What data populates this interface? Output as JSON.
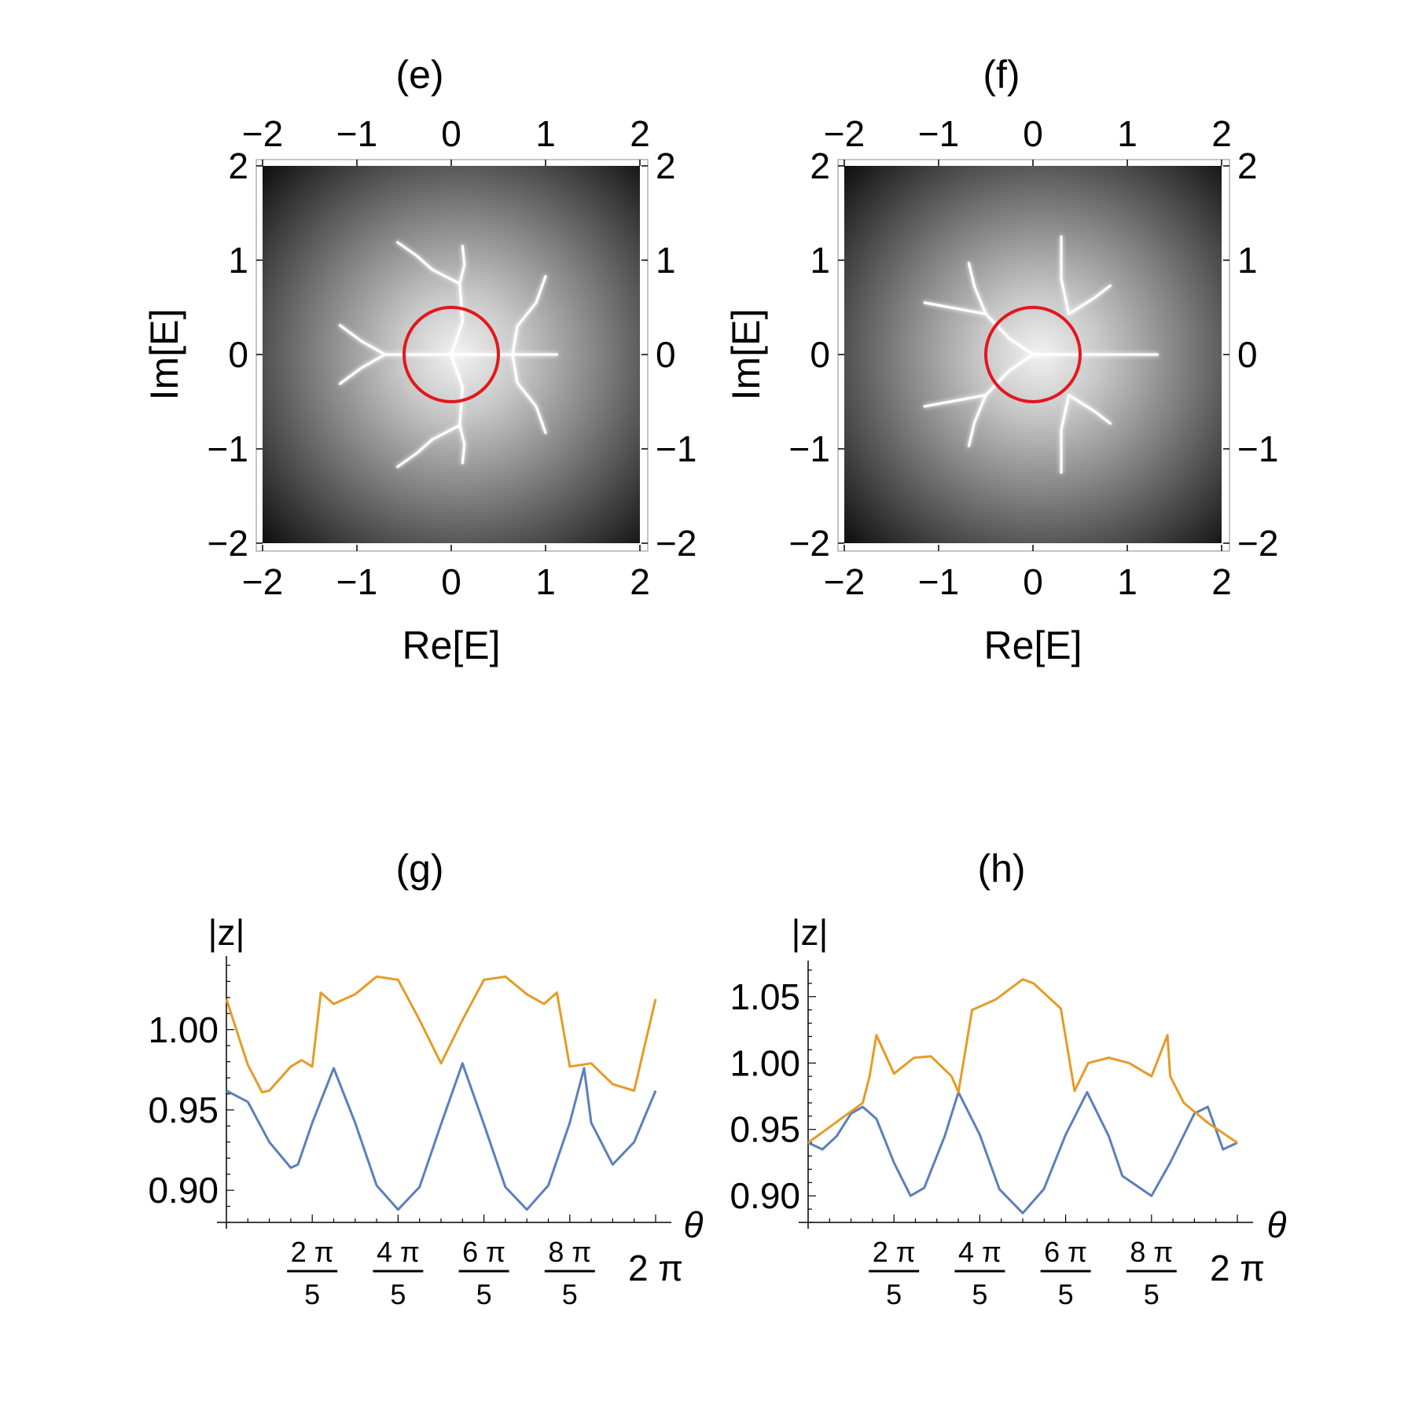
{
  "chart_data": [
    {
      "type": "heatmap",
      "title": "(e)",
      "xlabel": "Re[E]",
      "ylabel": "Im[E]",
      "xlim": [
        -2,
        2
      ],
      "ylim": [
        -2,
        2
      ],
      "xticks": [
        "−2",
        "−1",
        "0",
        "1",
        "2"
      ],
      "yticks": [
        "−2",
        "−1",
        "0",
        "1",
        "2"
      ],
      "colormap": "grayscale, bright near origin, dark at corners",
      "circle": {
        "center": [
          0,
          0
        ],
        "radius": 0.5,
        "color": "#e3171c"
      },
      "spectral_branches": [
        [
          [
            0,
            0
          ],
          [
            1.12,
            0
          ]
        ],
        [
          [
            0,
            0
          ],
          [
            -0.7,
            0
          ]
        ],
        [
          [
            -0.7,
            0
          ],
          [
            -0.95,
            0.14
          ],
          [
            -1.18,
            0.31
          ]
        ],
        [
          [
            -0.7,
            0
          ],
          [
            -0.95,
            -0.14
          ],
          [
            -1.18,
            -0.31
          ]
        ],
        [
          [
            0.65,
            0
          ],
          [
            0.7,
            0.3
          ],
          [
            0.9,
            0.55
          ],
          [
            1.0,
            0.83
          ]
        ],
        [
          [
            0.65,
            0
          ],
          [
            0.7,
            -0.3
          ],
          [
            0.9,
            -0.55
          ],
          [
            1.0,
            -0.83
          ]
        ],
        [
          [
            0.09,
            0.75
          ],
          [
            -0.2,
            0.9
          ],
          [
            -0.37,
            1.05
          ],
          [
            -0.57,
            1.19
          ]
        ],
        [
          [
            0.09,
            0.75
          ],
          [
            0.14,
            0.95
          ],
          [
            0.12,
            1.15
          ]
        ],
        [
          [
            0.09,
            -0.75
          ],
          [
            -0.2,
            -0.9
          ],
          [
            -0.37,
            -1.05
          ],
          [
            -0.57,
            -1.19
          ]
        ],
        [
          [
            0.09,
            -0.75
          ],
          [
            0.14,
            -0.95
          ],
          [
            0.12,
            -1.15
          ]
        ],
        [
          [
            0,
            0
          ],
          [
            0.12,
            0.35
          ],
          [
            0.09,
            0.75
          ]
        ],
        [
          [
            0,
            0
          ],
          [
            0.12,
            -0.35
          ],
          [
            0.09,
            -0.75
          ]
        ]
      ]
    },
    {
      "type": "heatmap",
      "title": "(f)",
      "xlabel": "Re[E]",
      "ylabel": "Im[E]",
      "xlim": [
        -2,
        2
      ],
      "ylim": [
        -2,
        2
      ],
      "xticks": [
        "−2",
        "−1",
        "0",
        "1",
        "2"
      ],
      "yticks": [
        "−2",
        "−1",
        "0",
        "1",
        "2"
      ],
      "colormap": "grayscale, bright near origin, dark at corners",
      "circle": {
        "center": [
          0,
          0
        ],
        "radius": 0.5,
        "color": "#e3171c"
      },
      "spectral_branches": [
        [
          [
            0,
            0
          ],
          [
            1.32,
            0
          ]
        ],
        [
          [
            0,
            0
          ],
          [
            -0.25,
            0.17
          ],
          [
            -0.5,
            0.43
          ],
          [
            -1.15,
            0.55
          ]
        ],
        [
          [
            0,
            0
          ],
          [
            -0.25,
            -0.17
          ],
          [
            -0.5,
            -0.43
          ],
          [
            -1.15,
            -0.55
          ]
        ],
        [
          [
            -0.5,
            0.43
          ],
          [
            -0.62,
            0.72
          ],
          [
            -0.68,
            0.97
          ]
        ],
        [
          [
            -0.5,
            -0.43
          ],
          [
            -0.62,
            -0.72
          ],
          [
            -0.68,
            -0.97
          ]
        ],
        [
          [
            0.38,
            0.43
          ],
          [
            0.3,
            0.8
          ],
          [
            0.3,
            1.25
          ]
        ],
        [
          [
            0.38,
            -0.43
          ],
          [
            0.3,
            -0.8
          ],
          [
            0.3,
            -1.25
          ]
        ],
        [
          [
            0.38,
            0.43
          ],
          [
            0.65,
            0.6
          ],
          [
            0.82,
            0.73
          ]
        ],
        [
          [
            0.38,
            -0.43
          ],
          [
            0.65,
            -0.6
          ],
          [
            0.82,
            -0.73
          ]
        ]
      ]
    },
    {
      "type": "line",
      "title": "(g)",
      "xlabel": "θ",
      "ylabel": "|z|",
      "xlim": [
        0,
        6.2832
      ],
      "ylim": [
        0.88,
        1.04
      ],
      "x_tick_labels": [
        "2π/5",
        "4π/5",
        "6π/5",
        "8π/5",
        "2π"
      ],
      "y_tick_labels": [
        "0.90",
        "0.95",
        "1.00"
      ],
      "series": [
        {
          "color": "#5b7fbb",
          "x": [
            0.0,
            0.3142,
            0.6283,
            0.9425,
            1.0472,
            1.2566,
            1.5708,
            1.885,
            2.1991,
            2.5133,
            2.8274,
            3.1416,
            3.4558,
            3.7699,
            4.0841,
            4.3982,
            4.7124,
            5.0265,
            5.236,
            5.3407,
            5.6549,
            5.969,
            6.2832
          ],
          "values": [
            0.962,
            0.955,
            0.93,
            0.914,
            0.916,
            0.942,
            0.976,
            0.942,
            0.903,
            0.888,
            0.902,
            0.941,
            0.979,
            0.941,
            0.902,
            0.888,
            0.903,
            0.942,
            0.976,
            0.942,
            0.916,
            0.93,
            0.962
          ]
        },
        {
          "color": "#e69b26",
          "x": [
            0.0,
            0.3142,
            0.5236,
            0.6283,
            0.9425,
            1.1,
            1.2566,
            1.3823,
            1.5708,
            1.885,
            2.1991,
            2.5133,
            2.8274,
            3.1416,
            3.4558,
            3.7699,
            4.0841,
            4.3982,
            4.6495,
            4.8381,
            5.0265,
            5.3407,
            5.6549,
            5.969,
            6.2832
          ],
          "values": [
            1.019,
            0.978,
            0.961,
            0.962,
            0.977,
            0.981,
            0.977,
            1.023,
            1.016,
            1.022,
            1.033,
            1.031,
            1.006,
            0.979,
            1.006,
            1.031,
            1.033,
            1.022,
            1.016,
            1.023,
            0.977,
            0.979,
            0.966,
            0.962,
            1.019
          ]
        }
      ]
    },
    {
      "type": "line",
      "title": "(h)",
      "xlabel": "θ",
      "ylabel": "|z|",
      "xlim": [
        0,
        6.2832
      ],
      "ylim": [
        0.88,
        1.07
      ],
      "x_tick_labels": [
        "2π/5",
        "4π/5",
        "6π/5",
        "8π/5",
        "2π"
      ],
      "y_tick_labels": [
        "0.90",
        "0.95",
        "1.00",
        "1.05"
      ],
      "series": [
        {
          "color": "#5b7fbb",
          "x": [
            0.0,
            0.2094,
            0.4189,
            0.6283,
            0.8,
            1.0,
            1.2566,
            1.5,
            1.7,
            2.0,
            2.2,
            2.5133,
            2.8,
            3.1416,
            3.45,
            3.7699,
            4.0841,
            4.4,
            4.6,
            5.0265,
            5.3,
            5.6549,
            5.85,
            6.0738,
            6.2832
          ],
          "values": [
            0.94,
            0.935,
            0.945,
            0.962,
            0.967,
            0.958,
            0.925,
            0.9,
            0.906,
            0.945,
            0.978,
            0.946,
            0.905,
            0.887,
            0.905,
            0.946,
            0.978,
            0.945,
            0.915,
            0.9,
            0.925,
            0.962,
            0.967,
            0.935,
            0.94
          ]
        },
        {
          "color": "#e69b26",
          "x": [
            0.0,
            0.4,
            0.8,
            0.9,
            1.0,
            1.2566,
            1.55,
            1.8,
            2.1,
            2.2,
            2.4,
            2.75,
            3.1416,
            3.3,
            3.7,
            3.9,
            4.1,
            4.4,
            4.7,
            5.0265,
            5.26,
            5.3,
            5.5,
            5.85,
            6.2832
          ],
          "values": [
            0.94,
            0.955,
            0.97,
            0.99,
            1.021,
            0.992,
            1.004,
            1.005,
            0.99,
            0.978,
            1.04,
            1.048,
            1.063,
            1.06,
            1.041,
            0.979,
            1.0,
            1.004,
            1.0,
            0.99,
            1.021,
            0.99,
            0.97,
            0.955,
            0.94
          ]
        }
      ]
    }
  ]
}
